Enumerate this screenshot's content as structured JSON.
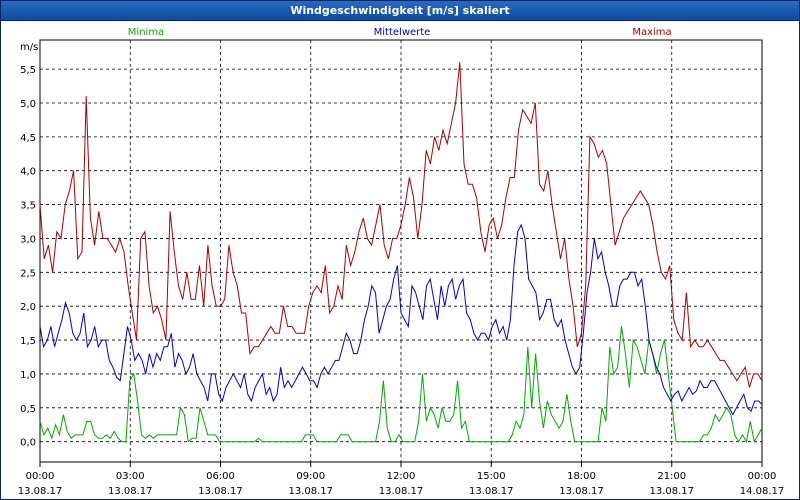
{
  "window": {
    "title": "Windgeschwindigkeit [m/s] skaliert"
  },
  "chart_data": {
    "type": "line",
    "title": "Windgeschwindigkeit [m/s] skaliert",
    "ylabel": "m/s",
    "xlabel": "",
    "ylim": [
      -0.3,
      5.9
    ],
    "xlim": [
      0,
      24
    ],
    "grid": true,
    "legend_placement": "top",
    "y_ticks": [
      "0,0",
      "0,5",
      "1,0",
      "1,5",
      "2,0",
      "2,5",
      "3,0",
      "3,5",
      "4,0",
      "4,5",
      "5,0",
      "5,5"
    ],
    "y_tick_values": [
      0,
      0.5,
      1.0,
      1.5,
      2.0,
      2.5,
      3.0,
      3.5,
      4.0,
      4.5,
      5.0,
      5.5
    ],
    "x_ticks": [
      {
        "time": "00:00",
        "date": "13.08.17"
      },
      {
        "time": "03:00",
        "date": "13.08.17"
      },
      {
        "time": "06:00",
        "date": "13.08.17"
      },
      {
        "time": "09:00",
        "date": "13.08.17"
      },
      {
        "time": "12:00",
        "date": "13.08.17"
      },
      {
        "time": "15:00",
        "date": "13.08.17"
      },
      {
        "time": "18:00",
        "date": "13.08.17"
      },
      {
        "time": "21:00",
        "date": "13.08.17"
      },
      {
        "time": "00:00",
        "date": "14.08.17"
      }
    ],
    "x_tick_hours": [
      0,
      3,
      6,
      9,
      12,
      15,
      18,
      21,
      24
    ],
    "series": [
      {
        "name": "Minima",
        "color": "#00aa00",
        "values": [
          0.3,
          0.1,
          0.2,
          0.05,
          0.25,
          0.1,
          0.4,
          0.15,
          0.05,
          0.1,
          0.1,
          0.1,
          0.3,
          0.3,
          0.1,
          0.05,
          0.05,
          0.1,
          0.05,
          0.15,
          0.05,
          0.0,
          0.0,
          0.9,
          1.0,
          0.6,
          0.1,
          0.05,
          0.1,
          0.05,
          0.1,
          0.1,
          0.1,
          0.1,
          0.1,
          0.1,
          0.5,
          0.4,
          0.0,
          0.05,
          0.05,
          0.5,
          0.3,
          0.1,
          0.1,
          0.1,
          0.0,
          0.0,
          0.0,
          0.0,
          0.0,
          0.0,
          0.0,
          0.0,
          0.0,
          0.0,
          0.05,
          0.0,
          0.0,
          0.0,
          0.0,
          0.0,
          0.0,
          0.0,
          0.0,
          0.0,
          0.0,
          0.0,
          0.1,
          0.1,
          0.1,
          0.0,
          0.0,
          0.0,
          0.0,
          0.0,
          0.0,
          0.1,
          0.1,
          0.1,
          0.0,
          0.0,
          0.0,
          0.0,
          0.0,
          0.0,
          0.0,
          0.3,
          0.9,
          0.2,
          0.0,
          0.0,
          0.1,
          0.0,
          0.0,
          0.0,
          0.0,
          0.3,
          1.0,
          0.3,
          0.5,
          0.4,
          0.2,
          0.5,
          0.3,
          0.3,
          0.4,
          0.9,
          0.2,
          0.3,
          0.0,
          0.0,
          0.0,
          0.0,
          0.0,
          0.0,
          0.0,
          0.0,
          0.0,
          0.0,
          0.0,
          0.1,
          0.3,
          0.2,
          0.4,
          1.4,
          0.5,
          1.3,
          0.6,
          0.2,
          0.6,
          0.4,
          0.3,
          0.2,
          0.3,
          0.7,
          0.3,
          0.0,
          0.0,
          0.0,
          0.0,
          0.0,
          0.0,
          0.0,
          0.5,
          0.3,
          1.4,
          1.0,
          1.1,
          1.7,
          1.3,
          0.8,
          1.5,
          1.4,
          1.2,
          1.0,
          1.5,
          1.3,
          1.0,
          1.3,
          1.5,
          1.0,
          0.5,
          0.0,
          0.0,
          0.0,
          0.0,
          0.0,
          0.0,
          0.0,
          0.1,
          0.1,
          0.2,
          0.4,
          0.3,
          0.4,
          0.5,
          0.4,
          0.1,
          0.0,
          0.1,
          0.0,
          0.3,
          0.0,
          0.1,
          0.2
        ]
      },
      {
        "name": "Mittelwerte",
        "color": "#0000cc",
        "values": [
          1.7,
          1.4,
          1.5,
          1.7,
          1.4,
          1.6,
          1.8,
          2.05,
          1.9,
          1.6,
          1.5,
          1.6,
          1.9,
          1.4,
          1.5,
          1.7,
          1.4,
          1.5,
          1.5,
          1.2,
          1.1,
          0.95,
          0.9,
          1.3,
          1.7,
          1.5,
          1.2,
          1.3,
          1.2,
          1.0,
          1.3,
          1.1,
          1.3,
          1.2,
          1.4,
          1.4,
          1.6,
          1.1,
          1.3,
          1.2,
          1.0,
          1.1,
          1.3,
          1.0,
          0.9,
          0.8,
          0.6,
          1.0,
          1.0,
          0.7,
          0.6,
          0.8,
          0.9,
          1.0,
          0.9,
          0.8,
          1.0,
          0.7,
          0.6,
          0.8,
          0.9,
          1.0,
          0.7,
          0.8,
          0.6,
          0.7,
          1.1,
          0.8,
          0.9,
          0.8,
          0.9,
          1.0,
          1.1,
          1.0,
          0.9,
          0.9,
          0.8,
          1.0,
          1.1,
          1.0,
          1.1,
          1.2,
          1.2,
          1.4,
          1.6,
          1.5,
          1.3,
          1.3,
          1.5,
          1.8,
          2.0,
          2.3,
          2.2,
          1.6,
          1.8,
          2.0,
          2.1,
          2.4,
          2.6,
          1.9,
          1.8,
          1.7,
          2.3,
          2.2,
          2.0,
          1.8,
          2.3,
          2.4,
          2.1,
          1.8,
          2.3,
          2.0,
          2.3,
          2.4,
          2.1,
          2.3,
          2.4,
          1.9,
          1.8,
          1.6,
          1.5,
          1.6,
          1.6,
          1.5,
          1.7,
          1.8,
          1.6,
          1.7,
          1.5,
          1.8,
          2.6,
          3.1,
          3.2,
          3.0,
          2.4,
          2.3,
          2.2,
          1.8,
          1.9,
          2.1,
          2.1,
          1.8,
          1.7,
          1.8,
          1.5,
          1.3,
          1.1,
          1.0,
          1.1,
          1.6,
          2.2,
          2.5,
          3.0,
          2.7,
          2.8,
          2.5,
          2.3,
          2.0,
          2.0,
          2.3,
          2.4,
          2.4,
          2.5,
          2.5,
          2.3,
          2.4,
          2.0,
          1.5,
          1.3,
          1.1,
          1.0,
          0.8,
          0.7,
          0.6,
          0.7,
          0.75,
          0.6,
          0.7,
          0.8,
          0.7,
          0.75,
          0.9,
          0.8,
          0.8,
          0.9,
          0.9,
          0.8,
          0.7,
          0.6,
          0.5,
          0.4,
          0.5,
          0.6,
          0.7,
          0.5,
          0.45,
          0.6,
          0.6,
          0.55
        ]
      },
      {
        "name": "Maxima",
        "color": "#aa0000",
        "values": [
          3.5,
          2.7,
          2.9,
          2.5,
          3.1,
          3.0,
          3.5,
          3.7,
          4.0,
          2.7,
          2.8,
          5.1,
          3.3,
          2.9,
          3.4,
          3.0,
          3.0,
          2.9,
          2.8,
          3.0,
          2.8,
          2.3,
          1.9,
          1.5,
          3.0,
          3.1,
          2.3,
          1.9,
          2.0,
          1.8,
          1.5,
          3.4,
          2.8,
          2.3,
          2.1,
          2.5,
          2.1,
          2.1,
          2.6,
          2.0,
          2.9,
          2.3,
          2.0,
          2.0,
          2.1,
          2.9,
          2.5,
          2.3,
          1.9,
          1.9,
          1.3,
          1.4,
          1.4,
          1.5,
          1.6,
          1.7,
          1.6,
          1.6,
          2.0,
          1.7,
          1.7,
          1.6,
          1.6,
          1.6,
          2.0,
          2.2,
          2.3,
          2.2,
          2.6,
          1.9,
          2.0,
          2.3,
          2.1,
          2.9,
          2.6,
          2.8,
          3.1,
          3.3,
          3.0,
          2.9,
          3.2,
          3.5,
          2.9,
          2.7,
          3.0,
          3.0,
          3.2,
          3.5,
          3.9,
          3.6,
          3.0,
          3.5,
          4.3,
          4.1,
          4.5,
          4.3,
          4.6,
          4.4,
          4.7,
          5.0,
          5.6,
          4.1,
          3.8,
          3.8,
          3.6,
          3.1,
          2.8,
          3.2,
          3.3,
          3.0,
          3.2,
          3.6,
          3.9,
          3.9,
          4.6,
          4.9,
          4.8,
          4.7,
          5.0,
          3.8,
          3.7,
          4.0,
          3.5,
          3.1,
          2.7,
          3.0,
          2.4,
          2.0,
          1.4,
          1.6,
          2.3,
          4.5,
          4.4,
          4.2,
          4.3,
          4.1,
          3.5,
          2.9,
          3.1,
          3.3,
          3.4,
          3.5,
          3.6,
          3.7,
          3.6,
          3.5,
          3.2,
          2.8,
          2.5,
          2.4,
          2.6,
          1.8,
          1.6,
          1.5,
          2.2,
          1.4,
          1.5,
          1.4,
          1.4,
          1.5,
          1.4,
          1.3,
          1.2,
          1.2,
          1.1,
          1.0,
          0.9,
          1.0,
          1.1,
          0.8,
          1.0,
          1.0,
          0.9
        ]
      }
    ]
  }
}
